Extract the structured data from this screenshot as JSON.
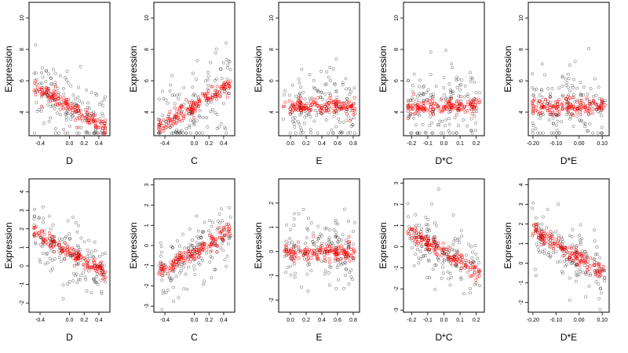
{
  "chart_data": [
    {
      "type": "scatter",
      "xlabel": "D",
      "ylabel": "Expression",
      "xticks": [
        "-0.4",
        "0.0",
        "0.2",
        "0.4"
      ],
      "yticks": [
        "4",
        "6",
        "8",
        "10"
      ],
      "xlim": [
        -0.55,
        0.55
      ],
      "ylim": [
        2.5,
        11.0
      ],
      "fit_sign": -1,
      "series": [
        {
          "color": "#000000"
        },
        {
          "color": "#ff0000"
        }
      ]
    },
    {
      "type": "scatter",
      "xlabel": "C",
      "ylabel": "Expression",
      "xticks": [
        "-0.4",
        "0.0",
        "0.2",
        "0.4"
      ],
      "yticks": [
        "4",
        "6",
        "8",
        "10"
      ],
      "xlim": [
        -0.55,
        0.55
      ],
      "ylim": [
        2.5,
        11.0
      ],
      "fit_sign": 1,
      "series": [
        {
          "color": "#000000"
        },
        {
          "color": "#ff0000"
        }
      ]
    },
    {
      "type": "scatter",
      "xlabel": "E",
      "ylabel": "Expression",
      "xticks": [
        "0.0",
        "0.2",
        "0.4",
        "0.6",
        "0.8"
      ],
      "yticks": [
        "4",
        "6",
        "8",
        "10"
      ],
      "xlim": [
        -0.15,
        0.88
      ],
      "ylim": [
        2.5,
        11.0
      ],
      "fit_sign": 0,
      "series": [
        {
          "color": "#000000"
        },
        {
          "color": "#ff0000"
        }
      ]
    },
    {
      "type": "scatter",
      "xlabel": "D*C",
      "ylabel": "Expression",
      "xticks": [
        "-0.2",
        "-0.1",
        "0.0",
        "0.1",
        "0.2"
      ],
      "yticks": [
        "4",
        "6",
        "8",
        "10"
      ],
      "xlim": [
        -0.25,
        0.25
      ],
      "ylim": [
        2.5,
        11.0
      ],
      "fit_sign": 0,
      "series": [
        {
          "color": "#000000"
        },
        {
          "color": "#ff0000"
        }
      ]
    },
    {
      "type": "scatter",
      "xlabel": "D*E",
      "ylabel": "Expression",
      "xticks": [
        "-0.20",
        "-0.10",
        "0.00",
        "0.10"
      ],
      "yticks": [
        "4",
        "6",
        "8",
        "10"
      ],
      "xlim": [
        -0.22,
        0.13
      ],
      "ylim": [
        2.5,
        11.0
      ],
      "fit_sign": 0,
      "series": [
        {
          "color": "#000000"
        },
        {
          "color": "#ff0000"
        }
      ]
    },
    {
      "type": "scatter",
      "xlabel": "D",
      "ylabel": "Expression",
      "xticks": [
        "-0.4",
        "0.0",
        "0.2",
        "0.4"
      ],
      "yticks": [
        "-2",
        "-1",
        "0",
        "1",
        "2",
        "3",
        "4"
      ],
      "xlim": [
        -0.55,
        0.55
      ],
      "ylim": [
        -2.5,
        4.7
      ],
      "fit_sign": -1,
      "series": [
        {
          "color": "#000000"
        },
        {
          "color": "#ff0000"
        }
      ]
    },
    {
      "type": "scatter",
      "xlabel": "C",
      "ylabel": "Expression",
      "xticks": [
        "-0.4",
        "0.0",
        "0.2",
        "0.4"
      ],
      "yticks": [
        "-3",
        "-2",
        "-1",
        "0",
        "1",
        "2",
        "3"
      ],
      "xlim": [
        -0.55,
        0.55
      ],
      "ylim": [
        -3.3,
        3.3
      ],
      "fit_sign": 1,
      "series": [
        {
          "color": "#000000"
        },
        {
          "color": "#ff0000"
        }
      ]
    },
    {
      "type": "scatter",
      "xlabel": "E",
      "ylabel": "Expression",
      "xticks": [
        "0.0",
        "0.2",
        "0.4",
        "0.6",
        "0.8"
      ],
      "yticks": [
        "-2",
        "-1",
        "0",
        "1",
        "2"
      ],
      "xlim": [
        -0.15,
        0.88
      ],
      "ylim": [
        -2.5,
        3.0
      ],
      "fit_sign": 0,
      "series": [
        {
          "color": "#000000"
        },
        {
          "color": "#ff0000"
        }
      ]
    },
    {
      "type": "scatter",
      "xlabel": "D*C",
      "ylabel": "Expression",
      "xticks": [
        "-0.2",
        "-0.1",
        "0.0",
        "0.1",
        "0.2"
      ],
      "yticks": [
        "-3",
        "-2",
        "-1",
        "0",
        "1",
        "2",
        "3"
      ],
      "xlim": [
        -0.25,
        0.25
      ],
      "ylim": [
        -3.1,
        3.2
      ],
      "fit_sign": -1,
      "series": [
        {
          "color": "#000000"
        },
        {
          "color": "#ff0000"
        }
      ]
    },
    {
      "type": "scatter",
      "xlabel": "D*E",
      "ylabel": "Expression",
      "xticks": [
        "-0.20",
        "-0.10",
        "0.00",
        "0.10"
      ],
      "yticks": [
        "-2",
        "-1",
        "0",
        "1",
        "2",
        "3",
        "4"
      ],
      "xlim": [
        -0.22,
        0.13
      ],
      "ylim": [
        -2.5,
        4.3
      ],
      "fit_sign": -1,
      "series": [
        {
          "color": "#000000"
        },
        {
          "color": "#ff0000"
        }
      ]
    }
  ]
}
